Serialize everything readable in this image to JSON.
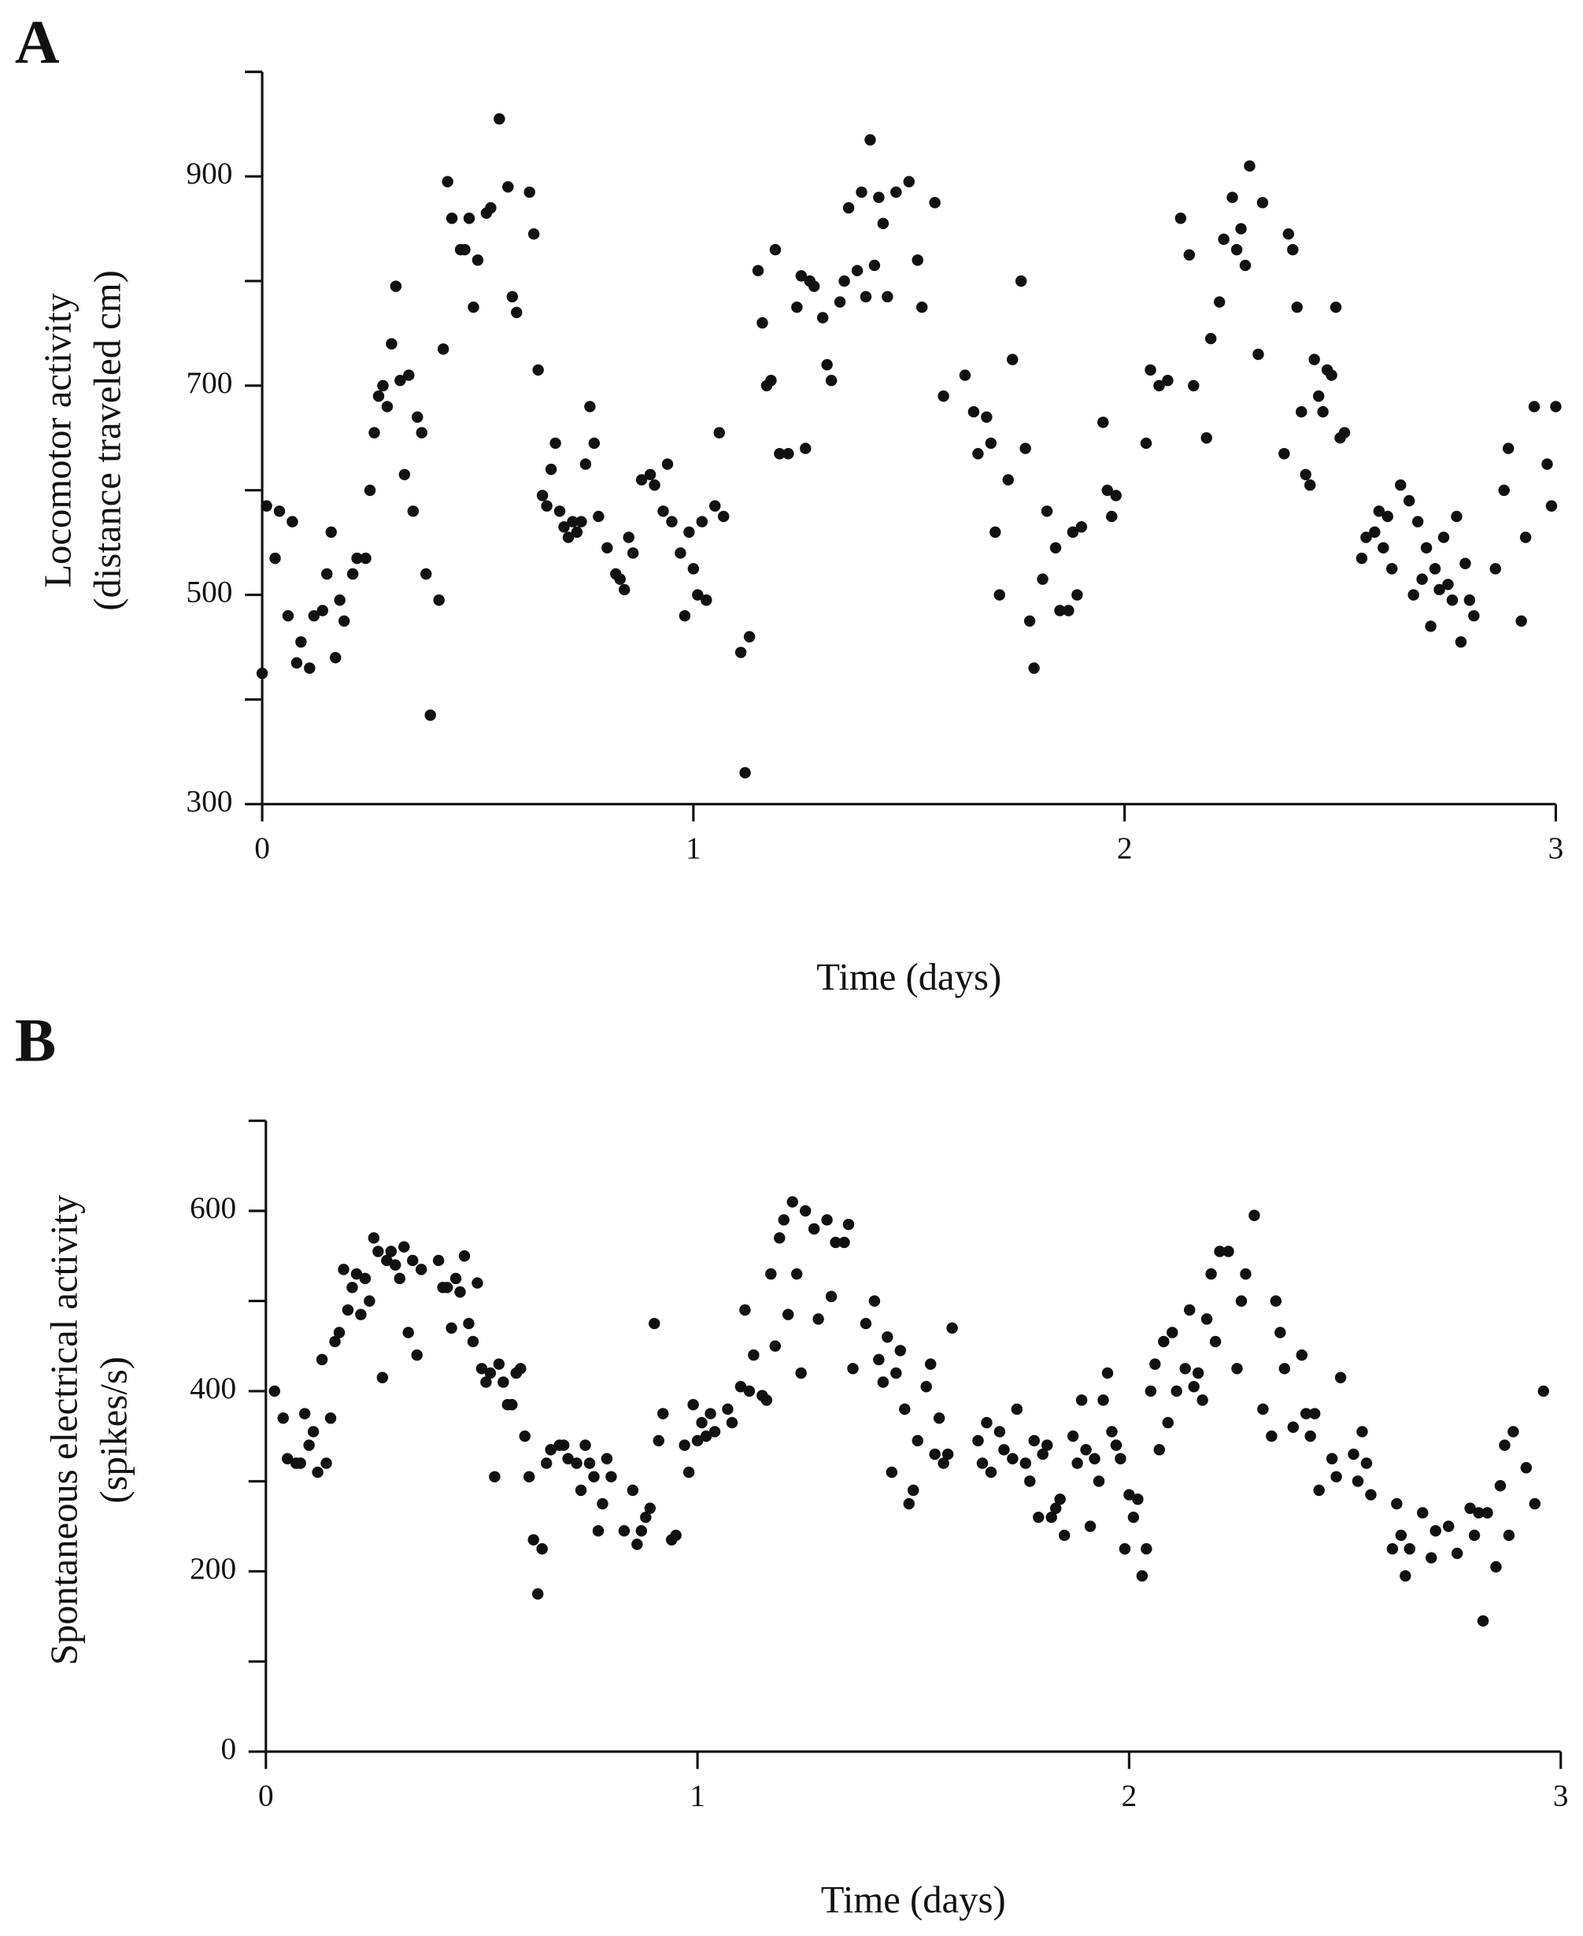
{
  "chart_data": [
    {
      "type": "scatter",
      "panel": "A",
      "xlabel": "Time (days)",
      "ylabel": [
        "Locomotor activity",
        "(distance traveled cm)"
      ],
      "color": "#111111",
      "xlim": [
        0,
        3
      ],
      "xticks": [
        0,
        1,
        2,
        3
      ],
      "ylim": [
        300,
        1000
      ],
      "yticks": [
        300,
        500,
        700,
        900
      ],
      "yminor_ticks": [
        400,
        600,
        800,
        1000
      ],
      "x": [
        0.0,
        0.01,
        0.03,
        0.04,
        0.06,
        0.07,
        0.08,
        0.09,
        0.11,
        0.12,
        0.14,
        0.15,
        0.16,
        0.17,
        0.18,
        0.19,
        0.21,
        0.22,
        0.24,
        0.25,
        0.26,
        0.27,
        0.28,
        0.29,
        0.3,
        0.31,
        0.32,
        0.33,
        0.34,
        0.35,
        0.36,
        0.37,
        0.38,
        0.39,
        0.41,
        0.42,
        0.43,
        0.44,
        0.46,
        0.47,
        0.48,
        0.49,
        0.5,
        0.52,
        0.53,
        0.55,
        0.57,
        0.58,
        0.59,
        0.62,
        0.63,
        0.64,
        0.65,
        0.66,
        0.67,
        0.68,
        0.69,
        0.7,
        0.71,
        0.72,
        0.73,
        0.74,
        0.75,
        0.76,
        0.77,
        0.78,
        0.8,
        0.82,
        0.83,
        0.84,
        0.85,
        0.86,
        0.88,
        0.9,
        0.91,
        0.93,
        0.94,
        0.95,
        0.97,
        0.98,
        0.99,
        1.0,
        1.01,
        1.02,
        1.03,
        1.05,
        1.06,
        1.07,
        1.11,
        1.12,
        1.13,
        1.15,
        1.16,
        1.17,
        1.18,
        1.19,
        1.2,
        1.22,
        1.24,
        1.25,
        1.26,
        1.27,
        1.28,
        1.3,
        1.31,
        1.32,
        1.34,
        1.35,
        1.36,
        1.38,
        1.39,
        1.4,
        1.41,
        1.42,
        1.43,
        1.44,
        1.45,
        1.47,
        1.5,
        1.52,
        1.53,
        1.56,
        1.58,
        1.63,
        1.65,
        1.66,
        1.68,
        1.69,
        1.7,
        1.71,
        1.73,
        1.74,
        1.76,
        1.77,
        1.78,
        1.79,
        1.81,
        1.82,
        1.84,
        1.85,
        1.87,
        1.88,
        1.89,
        1.9,
        1.95,
        1.96,
        1.97,
        1.98,
        2.05,
        2.06,
        2.08,
        2.1,
        2.13,
        2.15,
        2.16,
        2.19,
        2.2,
        2.22,
        2.23,
        2.25,
        2.26,
        2.27,
        2.28,
        2.29,
        2.31,
        2.32,
        2.37,
        2.38,
        2.39,
        2.4,
        2.41,
        2.42,
        2.43,
        2.44,
        2.45,
        2.46,
        2.47,
        2.48,
        2.49,
        2.5,
        2.51,
        2.55,
        2.56,
        2.58,
        2.59,
        2.6,
        2.61,
        2.62,
        2.64,
        2.66,
        2.67,
        2.68,
        2.69,
        2.7,
        2.71,
        2.72,
        2.73,
        2.74,
        2.75,
        2.76,
        2.77,
        2.78,
        2.79,
        2.8,
        2.81,
        2.86,
        2.88,
        2.89,
        2.92,
        2.93,
        2.95,
        2.98,
        2.99,
        3.0
      ],
      "values": [
        425,
        585,
        535,
        580,
        480,
        570,
        435,
        455,
        430,
        480,
        485,
        520,
        560,
        440,
        495,
        475,
        520,
        535,
        535,
        600,
        655,
        690,
        700,
        680,
        740,
        795,
        705,
        615,
        710,
        580,
        670,
        655,
        520,
        385,
        495,
        735,
        895,
        860,
        830,
        830,
        860,
        775,
        820,
        865,
        870,
        955,
        890,
        785,
        770,
        885,
        845,
        715,
        595,
        585,
        620,
        645,
        580,
        565,
        555,
        570,
        560,
        570,
        625,
        680,
        645,
        575,
        545,
        520,
        515,
        505,
        555,
        540,
        610,
        615,
        605,
        580,
        625,
        570,
        540,
        480,
        560,
        525,
        500,
        570,
        495,
        585,
        655,
        575,
        445,
        330,
        460,
        810,
        760,
        700,
        705,
        830,
        635,
        635,
        775,
        805,
        640,
        800,
        795,
        765,
        720,
        705,
        780,
        800,
        870,
        810,
        885,
        785,
        935,
        815,
        880,
        855,
        785,
        885,
        895,
        820,
        775,
        875,
        690,
        710,
        675,
        635,
        670,
        645,
        560,
        500,
        610,
        725,
        800,
        640,
        475,
        430,
        515,
        580,
        545,
        485,
        485,
        560,
        500,
        565,
        665,
        600,
        575,
        595,
        645,
        715,
        700,
        705,
        860,
        825,
        700,
        650,
        745,
        780,
        840,
        880,
        830,
        850,
        815,
        910,
        730,
        875,
        635,
        845,
        830,
        775,
        675,
        615,
        605,
        725,
        690,
        675,
        715,
        710,
        775,
        650,
        655,
        535,
        555,
        560,
        580,
        545,
        575,
        525,
        605,
        590,
        500,
        570,
        515,
        545,
        470,
        525,
        505,
        555,
        510,
        495,
        575,
        455,
        530,
        495,
        480,
        525,
        600,
        640,
        475,
        555,
        680,
        625,
        585,
        680
      ]
    },
    {
      "type": "scatter",
      "panel": "B",
      "xlabel": "Time (days)",
      "ylabel": [
        "Spontaneous electrical activity",
        "(spikes/s)"
      ],
      "color": "#111111",
      "xlim": [
        0,
        3
      ],
      "xticks": [
        0,
        1,
        2,
        3
      ],
      "ylim": [
        0,
        700
      ],
      "yticks": [
        0,
        200,
        400,
        600
      ],
      "yminor_ticks": [
        100,
        300,
        500,
        700
      ],
      "x": [
        0.02,
        0.04,
        0.05,
        0.07,
        0.08,
        0.09,
        0.1,
        0.11,
        0.12,
        0.13,
        0.14,
        0.15,
        0.16,
        0.17,
        0.18,
        0.19,
        0.2,
        0.21,
        0.22,
        0.23,
        0.24,
        0.25,
        0.26,
        0.27,
        0.28,
        0.29,
        0.3,
        0.31,
        0.32,
        0.33,
        0.34,
        0.35,
        0.36,
        0.4,
        0.41,
        0.42,
        0.43,
        0.44,
        0.45,
        0.46,
        0.47,
        0.48,
        0.49,
        0.5,
        0.51,
        0.52,
        0.53,
        0.54,
        0.55,
        0.56,
        0.57,
        0.58,
        0.59,
        0.6,
        0.61,
        0.62,
        0.63,
        0.64,
        0.65,
        0.66,
        0.68,
        0.69,
        0.7,
        0.72,
        0.73,
        0.74,
        0.75,
        0.76,
        0.77,
        0.78,
        0.79,
        0.8,
        0.83,
        0.85,
        0.86,
        0.87,
        0.88,
        0.89,
        0.9,
        0.91,
        0.92,
        0.94,
        0.95,
        0.97,
        0.98,
        0.99,
        1.0,
        1.01,
        1.02,
        1.03,
        1.04,
        1.07,
        1.08,
        1.1,
        1.11,
        1.12,
        1.13,
        1.15,
        1.16,
        1.17,
        1.18,
        1.19,
        1.2,
        1.21,
        1.22,
        1.23,
        1.24,
        1.25,
        1.27,
        1.28,
        1.3,
        1.31,
        1.32,
        1.34,
        1.35,
        1.36,
        1.39,
        1.41,
        1.42,
        1.43,
        1.44,
        1.45,
        1.46,
        1.47,
        1.48,
        1.49,
        1.5,
        1.51,
        1.53,
        1.54,
        1.55,
        1.56,
        1.57,
        1.58,
        1.59,
        1.65,
        1.66,
        1.67,
        1.68,
        1.7,
        1.71,
        1.73,
        1.74,
        1.76,
        1.77,
        1.78,
        1.79,
        1.8,
        1.81,
        1.82,
        1.83,
        1.84,
        1.85,
        1.87,
        1.88,
        1.89,
        1.9,
        1.91,
        1.92,
        1.93,
        1.94,
        1.95,
        1.96,
        1.97,
        1.98,
        1.99,
        2.0,
        2.01,
        2.02,
        2.03,
        2.04,
        2.05,
        2.06,
        2.07,
        2.08,
        2.09,
        2.1,
        2.11,
        2.13,
        2.14,
        2.15,
        2.16,
        2.17,
        2.18,
        2.19,
        2.2,
        2.21,
        2.23,
        2.25,
        2.26,
        2.27,
        2.29,
        2.31,
        2.33,
        2.34,
        2.35,
        2.36,
        2.38,
        2.4,
        2.41,
        2.42,
        2.43,
        2.44,
        2.47,
        2.48,
        2.49,
        2.52,
        2.53,
        2.54,
        2.55,
        2.56,
        2.61,
        2.62,
        2.63,
        2.64,
        2.65,
        2.68,
        2.7,
        2.71,
        2.74,
        2.76,
        2.79,
        2.8,
        2.81,
        2.82,
        2.83,
        2.85,
        2.86,
        2.87,
        2.88,
        2.89,
        2.92,
        2.94,
        2.96
      ],
      "values": [
        400,
        370,
        325,
        320,
        320,
        375,
        340,
        355,
        310,
        435,
        320,
        370,
        455,
        465,
        535,
        490,
        515,
        530,
        485,
        525,
        500,
        570,
        555,
        415,
        545,
        555,
        540,
        525,
        560,
        465,
        545,
        440,
        535,
        545,
        515,
        515,
        470,
        525,
        510,
        550,
        475,
        455,
        520,
        425,
        410,
        420,
        305,
        430,
        410,
        385,
        385,
        420,
        425,
        350,
        305,
        235,
        175,
        225,
        320,
        335,
        340,
        340,
        325,
        320,
        290,
        340,
        320,
        305,
        245,
        275,
        325,
        305,
        245,
        290,
        230,
        245,
        260,
        270,
        475,
        345,
        375,
        235,
        240,
        340,
        310,
        385,
        345,
        365,
        350,
        375,
        355,
        380,
        365,
        405,
        490,
        400,
        440,
        395,
        390,
        530,
        450,
        570,
        590,
        485,
        610,
        530,
        420,
        600,
        580,
        480,
        590,
        505,
        565,
        565,
        585,
        425,
        475,
        500,
        435,
        410,
        460,
        310,
        420,
        445,
        380,
        275,
        290,
        345,
        405,
        430,
        330,
        370,
        320,
        330,
        470,
        345,
        320,
        365,
        310,
        355,
        335,
        325,
        380,
        320,
        300,
        345,
        260,
        330,
        340,
        260,
        270,
        280,
        240,
        350,
        320,
        390,
        335,
        250,
        325,
        300,
        390,
        420,
        355,
        340,
        325,
        225,
        285,
        260,
        280,
        195,
        225,
        400,
        430,
        335,
        455,
        365,
        465,
        400,
        425,
        490,
        405,
        420,
        390,
        480,
        530,
        455,
        555,
        555,
        425,
        500,
        530,
        595,
        380,
        350,
        500,
        465,
        425,
        360,
        440,
        375,
        350,
        375,
        290,
        325,
        305,
        415,
        330,
        300,
        355,
        320,
        285,
        225,
        275,
        240,
        195,
        225,
        265,
        215,
        245,
        250,
        220,
        270,
        240,
        265,
        145,
        265,
        205,
        295,
        340,
        240,
        355,
        315,
        275,
        400
      ]
    }
  ]
}
